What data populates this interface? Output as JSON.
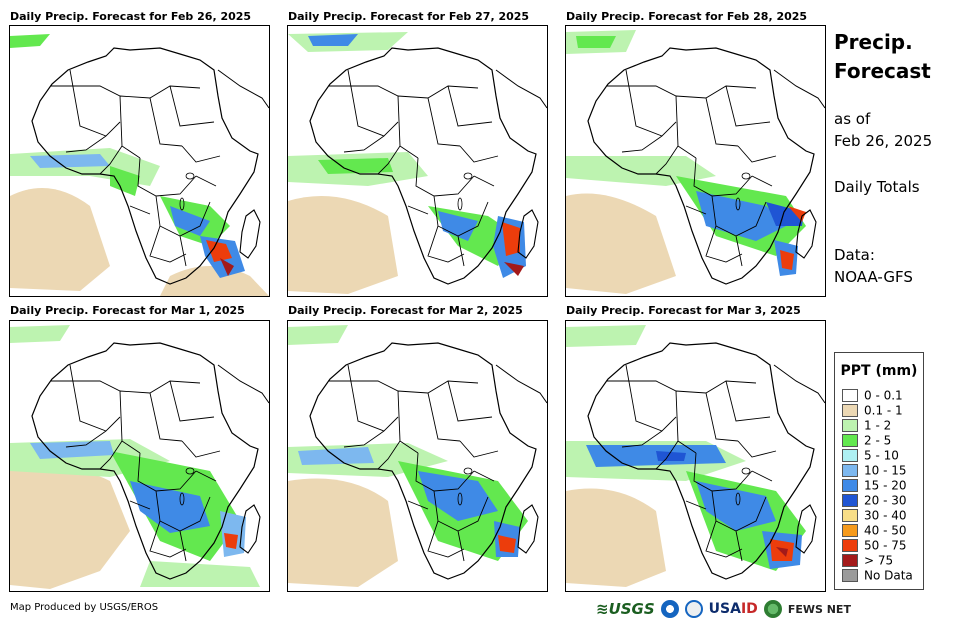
{
  "panels": [
    {
      "title": "Daily Precip. Forecast for Feb 26, 2025"
    },
    {
      "title": "Daily Precip. Forecast for Feb 27, 2025"
    },
    {
      "title": "Daily Precip. Forecast for Feb 28, 2025"
    },
    {
      "title": "Daily Precip. Forecast for Mar 1, 2025"
    },
    {
      "title": "Daily Precip. Forecast for Mar 2, 2025"
    },
    {
      "title": "Daily Precip. Forecast for Mar 3, 2025"
    }
  ],
  "side": {
    "title_line1": "Precip.",
    "title_line2": "Forecast",
    "asof_line1": "as of",
    "asof_line2": "Feb 26, 2025",
    "totals": "Daily Totals",
    "data_line1": "Data:",
    "data_line2": "NOAA-GFS"
  },
  "legend": {
    "title": "PPT (mm)",
    "items": [
      {
        "label": "0 - 0.1",
        "color": "#ffffff"
      },
      {
        "label": "0.1 - 1",
        "color": "#ecd8b4"
      },
      {
        "label": "1 - 2",
        "color": "#bdf3b0"
      },
      {
        "label": "2 - 5",
        "color": "#63e84f"
      },
      {
        "label": "5 - 10",
        "color": "#aef0f3"
      },
      {
        "label": "10 - 15",
        "color": "#7db8ef"
      },
      {
        "label": "15 - 20",
        "color": "#3f8ae6"
      },
      {
        "label": "20 - 30",
        "color": "#1f55d4"
      },
      {
        "label": "30 - 40",
        "color": "#f8de88"
      },
      {
        "label": "40 - 50",
        "color": "#f59a1c"
      },
      {
        "label": "50 - 75",
        "color": "#ec3d0c"
      },
      {
        "label": "> 75",
        "color": "#a31a1a"
      },
      {
        "label": "No Data",
        "color": "#9b9b9b"
      }
    ]
  },
  "footer": {
    "credit": "Map Produced by USGS/EROS",
    "logo_usgs": "≋USGS",
    "logo_usaid_a": "USA",
    "logo_usaid_b": "ID",
    "logo_fews": "FEWS NET"
  }
}
